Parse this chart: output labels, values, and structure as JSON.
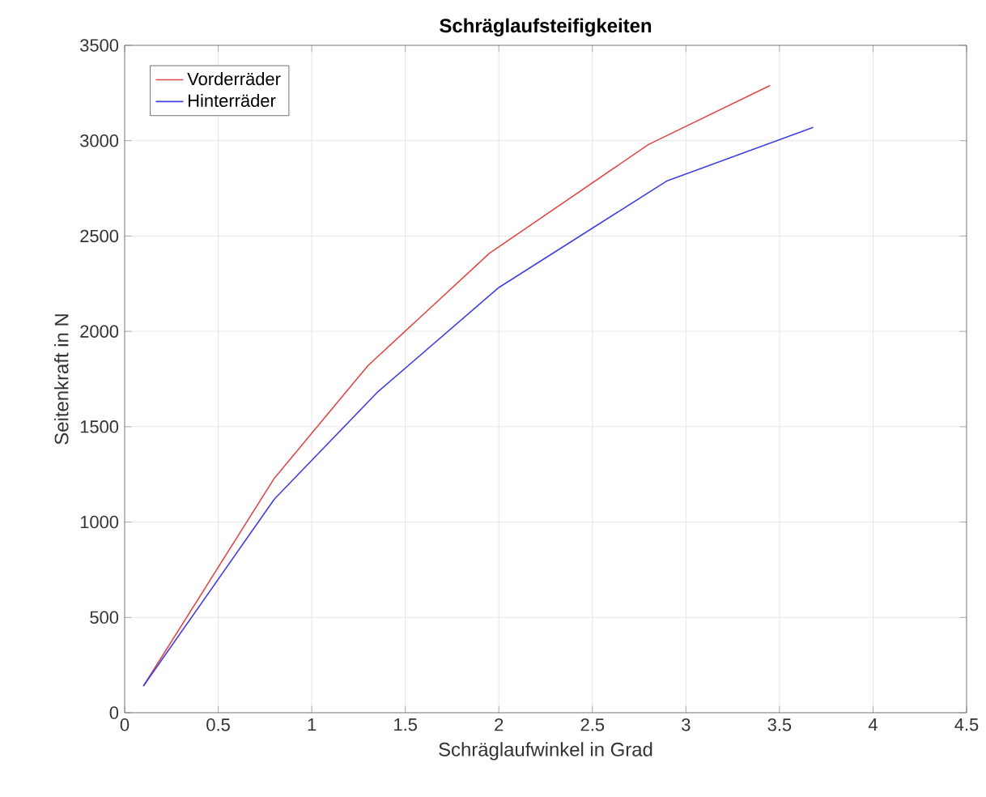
{
  "chart_data": {
    "type": "line",
    "title": "Schräglaufsteifigkeiten",
    "xlabel": "Schräglaufwinkel in Grad",
    "ylabel": "Seitenkraft in N",
    "xlim": [
      0,
      4.5
    ],
    "xticks": [
      0,
      0.5,
      1,
      1.5,
      2,
      2.5,
      3,
      3.5,
      4,
      4.5
    ],
    "ylim": [
      0,
      3500
    ],
    "yticks": [
      0,
      500,
      1000,
      1500,
      2000,
      2500,
      3000,
      3500
    ],
    "grid": true,
    "legend": "top left",
    "line_style": "solid",
    "series": [
      {
        "name": "Vorderräder",
        "color": "#e04848",
        "x": [
          0.1,
          0.8,
          1.3,
          1.95,
          2.8,
          3.45
        ],
        "values": [
          140,
          1230,
          1820,
          2410,
          2980,
          3290
        ]
      },
      {
        "name": "Hinterräder",
        "color": "#4040e0",
        "x": [
          0.1,
          0.8,
          1.35,
          2.0,
          2.9,
          3.68
        ],
        "values": [
          140,
          1120,
          1680,
          2230,
          2790,
          3070
        ]
      }
    ]
  }
}
